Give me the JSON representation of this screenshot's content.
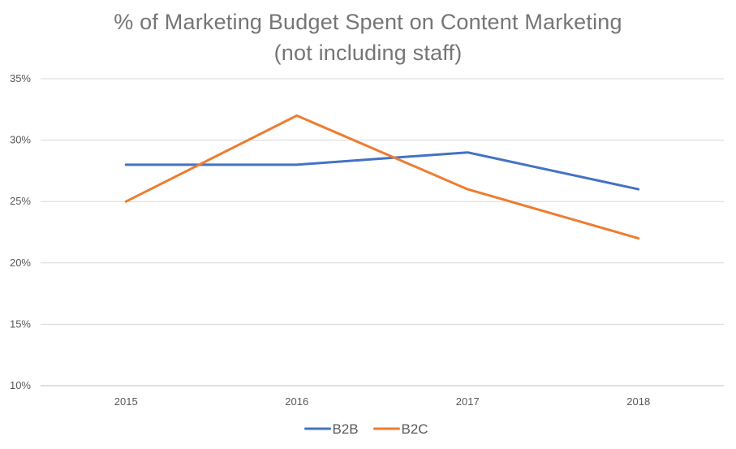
{
  "chart_data": {
    "type": "line",
    "title": "% of Marketing Budget Spent on Content Marketing",
    "subtitle": "(not including staff)",
    "xlabel": "",
    "ylabel": "",
    "categories": [
      "2015",
      "2016",
      "2017",
      "2018"
    ],
    "series": [
      {
        "name": "B2B",
        "values": [
          28,
          28,
          29,
          26
        ],
        "color": "#4472C4"
      },
      {
        "name": "B2C",
        "values": [
          25,
          32,
          26,
          22
        ],
        "color": "#ED7D31"
      }
    ],
    "ylim": [
      10,
      35
    ],
    "yticks": [
      10,
      15,
      20,
      25,
      30,
      35
    ],
    "ytick_labels": [
      "10%",
      "15%",
      "20%",
      "25%",
      "30%",
      "35%"
    ],
    "grid": true,
    "legend": "bottom-center",
    "gridline_color": "#D9D9D9",
    "axis_color": "#BFBFBF"
  }
}
